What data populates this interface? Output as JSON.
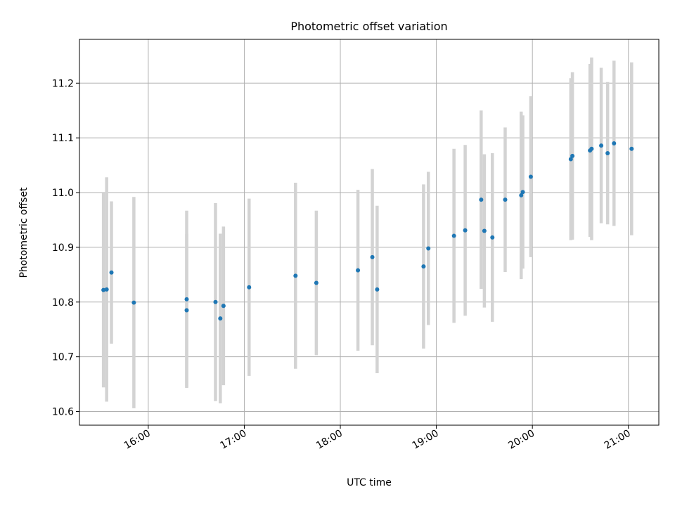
{
  "chart_data": {
    "type": "scatter",
    "title": "Photometric offset variation",
    "xlabel": "UTC time",
    "ylabel": "Photometric offset",
    "xlim": [
      "15:17",
      "21:19"
    ],
    "ylim": [
      10.575,
      11.28
    ],
    "x_ticks": [
      "16:00",
      "17:00",
      "18:00",
      "19:00",
      "20:00",
      "21:00"
    ],
    "y_ticks": [
      10.6,
      10.7,
      10.8,
      10.9,
      11.0,
      11.1,
      11.2
    ],
    "grid": true,
    "point_color": "#1f77b4",
    "errorbar_color": "#d3d3d3",
    "series": [
      {
        "points": [
          {
            "t": "15:32",
            "y": 10.822,
            "err": 0.178
          },
          {
            "t": "15:34",
            "y": 10.823,
            "err": 0.205
          },
          {
            "t": "15:37",
            "y": 10.854,
            "err": 0.13
          },
          {
            "t": "15:51",
            "y": 10.799,
            "err": 0.193
          },
          {
            "t": "16:24",
            "y": 10.785,
            "err": 0.14
          },
          {
            "t": "16:24",
            "y": 10.805,
            "err": 0.162
          },
          {
            "t": "16:42",
            "y": 10.8,
            "err": 0.181
          },
          {
            "t": "16:45",
            "y": 10.77,
            "err": 0.155
          },
          {
            "t": "16:47",
            "y": 10.793,
            "err": 0.145
          },
          {
            "t": "17:03",
            "y": 10.827,
            "err": 0.162
          },
          {
            "t": "17:32",
            "y": 10.848,
            "err": 0.17
          },
          {
            "t": "17:45",
            "y": 10.835,
            "err": 0.132
          },
          {
            "t": "18:11",
            "y": 10.858,
            "err": 0.147
          },
          {
            "t": "18:20",
            "y": 10.882,
            "err": 0.161
          },
          {
            "t": "18:23",
            "y": 10.823,
            "err": 0.153
          },
          {
            "t": "18:52",
            "y": 10.865,
            "err": 0.15
          },
          {
            "t": "18:55",
            "y": 10.898,
            "err": 0.14
          },
          {
            "t": "19:11",
            "y": 10.921,
            "err": 0.159
          },
          {
            "t": "19:18",
            "y": 10.931,
            "err": 0.156
          },
          {
            "t": "19:28",
            "y": 10.987,
            "err": 0.163
          },
          {
            "t": "19:30",
            "y": 10.93,
            "err": 0.14
          },
          {
            "t": "19:35",
            "y": 10.918,
            "err": 0.154
          },
          {
            "t": "19:43",
            "y": 10.987,
            "err": 0.132
          },
          {
            "t": "19:53",
            "y": 10.995,
            "err": 0.153
          },
          {
            "t": "19:54",
            "y": 11.001,
            "err": 0.14
          },
          {
            "t": "19:59",
            "y": 11.029,
            "err": 0.147
          },
          {
            "t": "20:24",
            "y": 11.061,
            "err": 0.148
          },
          {
            "t": "20:25",
            "y": 11.067,
            "err": 0.153
          },
          {
            "t": "20:36",
            "y": 11.077,
            "err": 0.158
          },
          {
            "t": "20:37",
            "y": 11.08,
            "err": 0.167
          },
          {
            "t": "20:43",
            "y": 11.086,
            "err": 0.142
          },
          {
            "t": "20:47",
            "y": 11.072,
            "err": 0.13
          },
          {
            "t": "20:51",
            "y": 11.09,
            "err": 0.151
          },
          {
            "t": "21:02",
            "y": 11.08,
            "err": 0.158
          }
        ]
      }
    ]
  }
}
